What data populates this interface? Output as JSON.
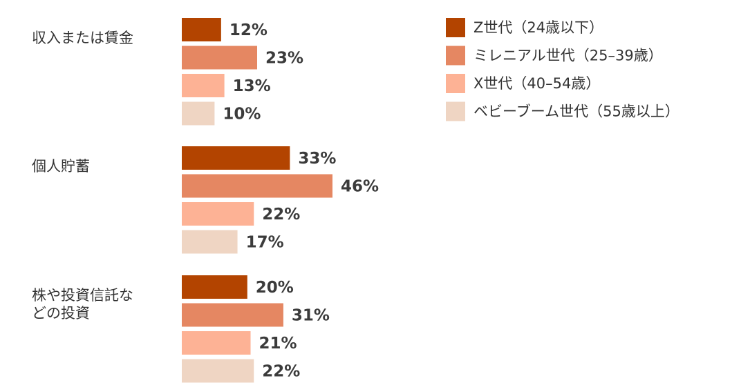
{
  "chart_data": {
    "type": "bar",
    "orientation": "horizontal",
    "categories": [
      "収入または賃金",
      "個人貯蓄",
      "株や投資信託などの投資"
    ],
    "category_label_lines": [
      [
        "収入または賃金"
      ],
      [
        "個人貯蓄"
      ],
      [
        "株や投資信託な",
        "どの投資"
      ]
    ],
    "series": [
      {
        "name": "Z世代（24歳以下）",
        "values": [
          12,
          33,
          20
        ],
        "color": "#b34400"
      },
      {
        "name": "ミレニアル世代（25–39歳）",
        "values": [
          23,
          46,
          31
        ],
        "color": "#e58762"
      },
      {
        "name": "X世代（40–54歳）",
        "values": [
          13,
          22,
          21
        ],
        "color": "#fdb295"
      },
      {
        "name": "ベビーブーム世代（55歳以上）",
        "values": [
          10,
          17,
          22
        ],
        "color": "#efd5c3"
      }
    ],
    "value_suffix": "%",
    "xlim": [
      0,
      46
    ],
    "grid": false,
    "legend_position": "top-right"
  }
}
